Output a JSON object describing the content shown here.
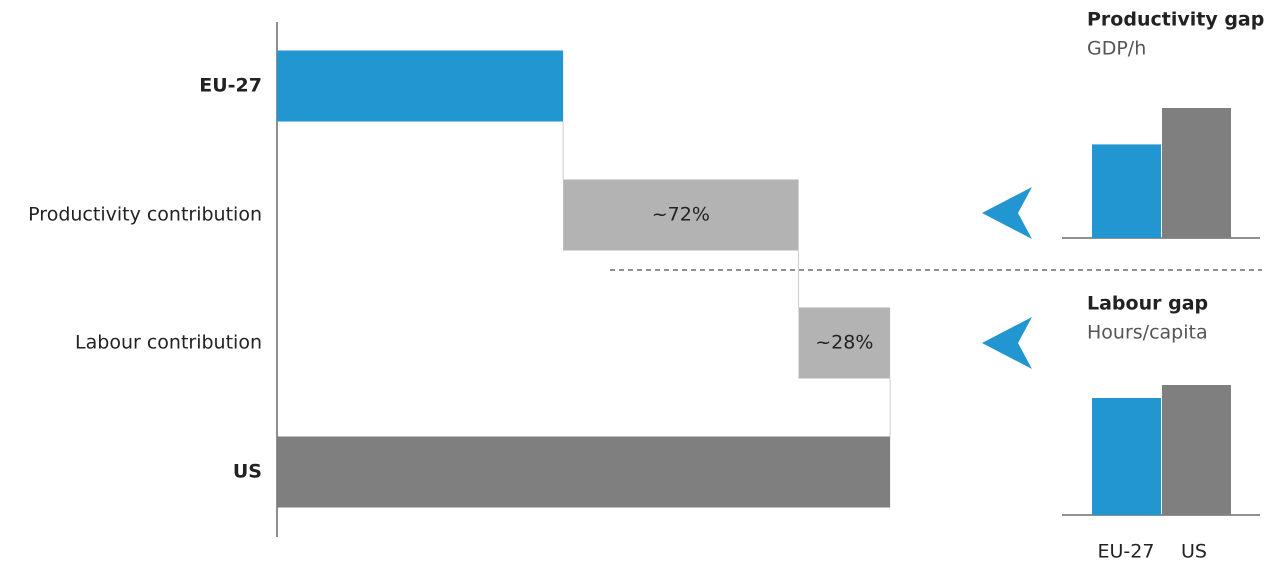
{
  "chart_data": [
    {
      "type": "waterfall",
      "categories": [
        "EU-27",
        "Productivity contribution",
        "Labour contribution",
        "US"
      ],
      "values": [
        87.5,
        72,
        28,
        187.5
      ],
      "value_labels": [
        null,
        "~72%",
        "~28%",
        null
      ],
      "colors": [
        "#2196d0",
        "#b3b3b3",
        "#b3b3b3",
        "#7f7f7f"
      ]
    },
    {
      "type": "bar",
      "title": "Productivity gap",
      "subtitle": "GDP/h",
      "categories": [
        null,
        null
      ],
      "values": [
        72,
        100
      ],
      "colors": [
        "#2196d0",
        "#7f7f7f"
      ]
    },
    {
      "type": "bar",
      "title": "Labour gap",
      "subtitle": "Hours/capita",
      "categories": [
        "EU-27",
        "US"
      ],
      "values": [
        90,
        100
      ],
      "colors": [
        "#2196d0",
        "#7f7f7f"
      ]
    }
  ]
}
